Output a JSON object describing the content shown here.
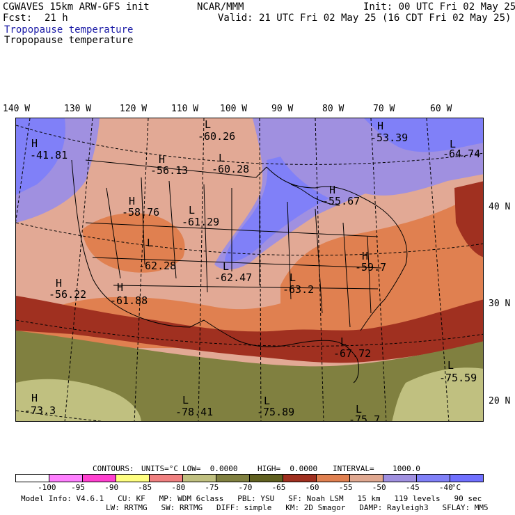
{
  "header": {
    "model": "CGWAVES 15km ARW-GFS init",
    "org": "NCAR/MMM",
    "init": "Init: 00 UTC Fri 02 May 25",
    "fcst_label": "Fcst:",
    "fcst_value": "21 h",
    "valid": "Valid: 21 UTC Fri 02 May 25 (16 CDT Fri 02 May 25)",
    "field1": "Tropopause temperature",
    "field2": "Tropopause temperature"
  },
  "longitude_labels": [
    "140 W",
    "130 W",
    "120 W",
    "110 W",
    "100 W",
    "90 W",
    "80 W",
    "70 W",
    "60 W"
  ],
  "latitude_labels": [
    "40 N",
    "30 N",
    "20 N"
  ],
  "extrema": [
    {
      "kind": "H",
      "value": "-41.81"
    },
    {
      "kind": "L",
      "value": "-60.26"
    },
    {
      "kind": "L",
      "value": "-60.28"
    },
    {
      "kind": "H",
      "value": "-56.13"
    },
    {
      "kind": "H",
      "value": "-53.39"
    },
    {
      "kind": "L",
      "value": "-64.74"
    },
    {
      "kind": "H",
      "value": "-55.67"
    },
    {
      "kind": "H",
      "value": "-58.76"
    },
    {
      "kind": "L",
      "value": "-61.29"
    },
    {
      "kind": "L",
      "value": "-62.28"
    },
    {
      "kind": "L",
      "value": "-62.47"
    },
    {
      "kind": "H",
      "value": "-59.7"
    },
    {
      "kind": "H",
      "value": "-56.22"
    },
    {
      "kind": "H",
      "value": "-61.88"
    },
    {
      "kind": "L",
      "value": "-63.2"
    },
    {
      "kind": "L",
      "value": "-67.72"
    },
    {
      "kind": "L",
      "value": "-75.59"
    },
    {
      "kind": "H",
      "value": "-73.3"
    },
    {
      "kind": "L",
      "value": "-78.41"
    },
    {
      "kind": "L",
      "value": "-75.89"
    },
    {
      "kind": "L",
      "value": "-75.7"
    }
  ],
  "contour_info": {
    "contours": "CONTOURS:",
    "units": "UNITS=°C",
    "low": "LOW=  0.0000",
    "high": "HIGH=  0.0000",
    "interval": "INTERVAL=    1000.0"
  },
  "colorbar": {
    "colors": [
      "#ffffff",
      "#ff80ff",
      "#ff40d0",
      "#ffff80",
      "#f08080",
      "#c0c080",
      "#808040",
      "#606020",
      "#a03020",
      "#e08050",
      "#e0a890",
      "#a090e0",
      "#8080f8",
      "#7070ff"
    ],
    "labels": [
      "-100",
      "-95",
      "-90",
      "-85",
      "-80",
      "-75",
      "-70",
      "-65",
      "-60",
      "-55",
      "-50",
      "-45",
      "-40",
      "°C"
    ]
  },
  "footer": {
    "line1": [
      {
        "key": "Model Info:",
        "val": "V4.6.1"
      },
      {
        "key": "CU:",
        "val": "KF"
      },
      {
        "key": "MP:",
        "val": "WDM 6class"
      },
      {
        "key": "PBL:",
        "val": "YSU"
      },
      {
        "key": "SF:",
        "val": "Noah LSM"
      },
      {
        "key": "",
        "val": "15 km"
      },
      {
        "key": "",
        "val": "119 levels"
      },
      {
        "key": "",
        "val": "90 sec"
      }
    ],
    "line2": [
      {
        "key": "LW:",
        "val": "RRTMG"
      },
      {
        "key": "SW:",
        "val": "RRTMG"
      },
      {
        "key": "DIFF:",
        "val": "simple"
      },
      {
        "key": "KM:",
        "val": "2D Smagor"
      },
      {
        "key": "DAMP:",
        "val": "Rayleigh3"
      },
      {
        "key": "SFLAY:",
        "val": "MM5"
      }
    ]
  }
}
